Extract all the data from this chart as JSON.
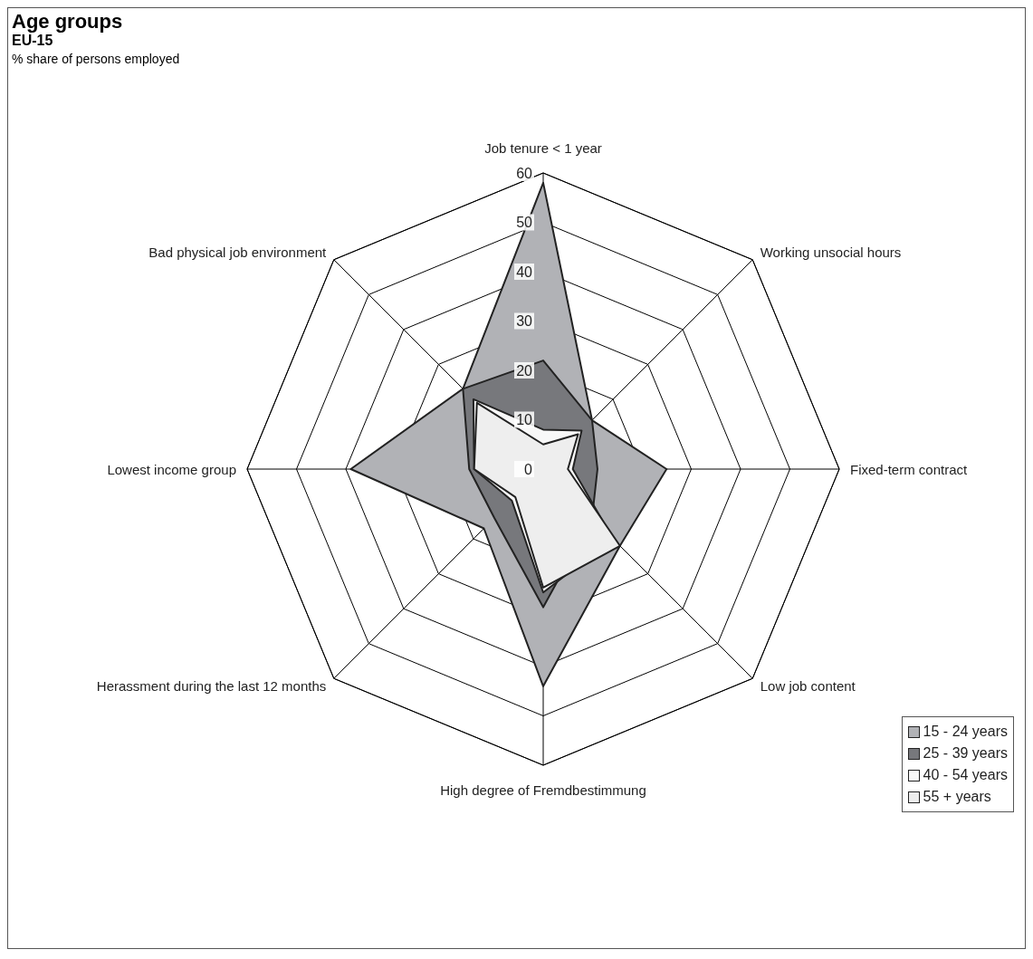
{
  "chart_data": {
    "type": "radar",
    "title": "Age groups",
    "subtitle": "EU-15",
    "annotations": [
      "% share of persons employed"
    ],
    "categories": [
      "Job tenure < 1 year",
      "Working unsocial hours",
      "Fixed-term contract",
      "Low job content",
      "High degree of Fremdbestimmung",
      "Herassment during the last 12 months",
      "Lowest income group",
      "Bad physical job environment"
    ],
    "series": [
      {
        "name": "15 - 24 years",
        "color": "#b1b2b6",
        "values": [
          58,
          14,
          25,
          22,
          44,
          17,
          39,
          23
        ]
      },
      {
        "name": "25 - 39 years",
        "color": "#77787c",
        "values": [
          22,
          14,
          11,
          14,
          28,
          14,
          15,
          23
        ]
      },
      {
        "name": "40 - 54 years",
        "color": "#f8f8f8",
        "values": [
          8,
          11,
          6,
          20,
          25,
          9,
          14,
          20
        ]
      },
      {
        "name": "55 + years",
        "color": "#eeeeee",
        "values": [
          5,
          10,
          5,
          22,
          24,
          8,
          14,
          19
        ]
      }
    ],
    "ylim": [
      0,
      60
    ],
    "yticks": [
      0,
      10,
      20,
      30,
      40,
      50,
      60
    ],
    "grid": true,
    "legend": "bottom right"
  }
}
